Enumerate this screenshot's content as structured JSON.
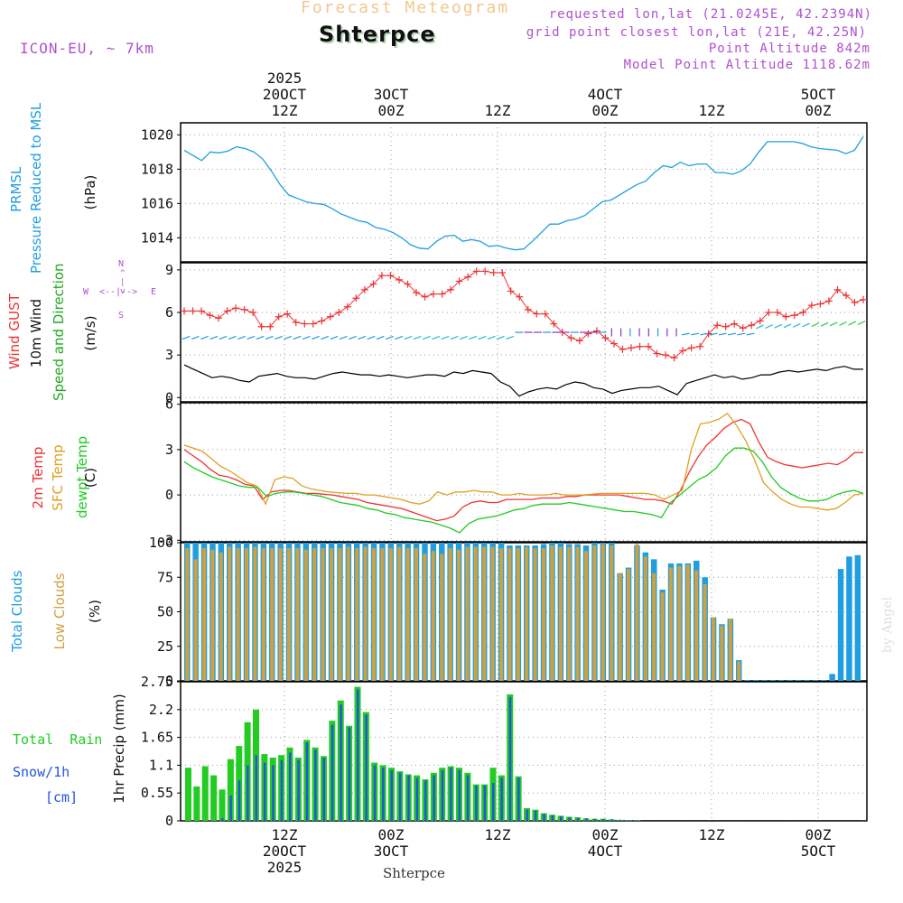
{
  "header": {
    "faint_title": "Forecast Meteogram",
    "location": "Shterpce",
    "model": "ICON-EU, ~ 7km",
    "requested": "requested lon,lat (21.0245E, 42.2394N)",
    "grid_point": "grid point closest lon,lat (21E, 42.25N)",
    "point_alt": "Point Altitude 842m",
    "model_alt": "Model Point Altitude 1118.62m"
  },
  "footer": {
    "location": "Shterpce",
    "signature": "by Angel"
  },
  "colors": {
    "pressure": "#1f9fe0",
    "gust": "#ee3333",
    "wind": "#000000",
    "arrows_blue": "#2299dd",
    "arrows_purple": "#8833cc",
    "arrows_green": "#22cc44",
    "temp2m": "#ee3333",
    "sfc": "#e0a020",
    "dew": "#22cc22",
    "total_cloud": "#1f9fe0",
    "low_cloud": "#d0a040",
    "rain": "#22cc22",
    "snow": "#2255dd",
    "purple_text": "#b050d0",
    "faint": "#f0c080"
  },
  "time_axis": {
    "top_labels": [
      {
        "l1": "2025",
        "l2": "20OCT",
        "l3": "12Z"
      },
      {
        "l1": "",
        "l2": "3OCT",
        "l3": "00Z"
      },
      {
        "l1": "",
        "l2": "",
        "l3": "12Z"
      },
      {
        "l1": "",
        "l2": "4OCT",
        "l3": "00Z"
      },
      {
        "l1": "",
        "l2": "",
        "l3": "12Z"
      },
      {
        "l1": "",
        "l2": "5OCT",
        "l3": "00Z"
      }
    ],
    "bottom_labels": [
      {
        "l1": "12Z",
        "l2": "20OCT",
        "l3": "2025"
      },
      {
        "l1": "00Z",
        "l2": "3OCT",
        "l3": ""
      },
      {
        "l1": "12Z",
        "l2": "",
        "l3": ""
      },
      {
        "l1": "00Z",
        "l2": "4OCT",
        "l3": ""
      },
      {
        "l1": "12Z",
        "l2": "",
        "l3": ""
      },
      {
        "l1": "00Z",
        "l2": "5OCT",
        "l3": ""
      }
    ]
  },
  "panel_labels": {
    "pressure": {
      "name": "PRMSL",
      "desc": "Pressure Reduced to MSL",
      "unit": "(hPa)"
    },
    "wind": {
      "gust": "Wind GUST",
      "wind10": "10m Wind",
      "dir": "Speed and Direction",
      "unit": "(m/s)",
      "compass_n": "N",
      "compass_s": "S",
      "compass_w": "W",
      "compass_e": "E",
      "compass_v": "^\n|\nv",
      "compass_h": "<--|-->"
    },
    "temp": {
      "t2m": "2m Temp",
      "sfc": "SFC Temp",
      "dew": "dewpt Temp",
      "unit": "(C)"
    },
    "cloud": {
      "total": "Total Clouds",
      "low": "Low Clouds",
      "unit": "(%)"
    },
    "precip": {
      "total_rain": "Total  Rain",
      "snow": "Snow/1h",
      "snow_unit": "[cm]",
      "axis": "1hr Precip (mm)"
    }
  },
  "chart_data": [
    {
      "type": "line",
      "panel": "pressure",
      "title": "PRMSL Pressure Reduced to MSL",
      "ylabel": "(hPa)",
      "ylim": [
        1012.6,
        1020.7
      ],
      "yticks": [
        1014,
        1016,
        1018,
        1020
      ],
      "grid": true,
      "series": [
        {
          "name": "PRMSL",
          "values": [
            1019.1,
            1018.8,
            1018.5,
            1019.0,
            1018.95,
            1019.05,
            1019.3,
            1019.2,
            1019.0,
            1018.6,
            1017.9,
            1017.1,
            1016.5,
            1016.3,
            1016.1,
            1016.0,
            1015.95,
            1015.7,
            1015.4,
            1015.2,
            1015.0,
            1014.9,
            1014.6,
            1014.5,
            1014.3,
            1014.0,
            1013.6,
            1013.4,
            1013.35,
            1013.8,
            1014.1,
            1014.15,
            1013.8,
            1013.9,
            1013.8,
            1013.5,
            1013.55,
            1013.4,
            1013.3,
            1013.35,
            1013.8,
            1014.3,
            1014.8,
            1014.8,
            1015.0,
            1015.1,
            1015.3,
            1015.7,
            1016.1,
            1016.2,
            1016.5,
            1016.8,
            1017.1,
            1017.3,
            1017.8,
            1018.2,
            1018.1,
            1018.4,
            1018.2,
            1018.3,
            1018.3,
            1017.8,
            1017.8,
            1017.7,
            1017.9,
            1018.3,
            1019.0,
            1019.6,
            1019.6,
            1019.6,
            1019.6,
            1019.5,
            1019.3,
            1019.2,
            1019.15,
            1019.1,
            1018.9,
            1019.1,
            1019.9
          ]
        }
      ]
    },
    {
      "type": "line",
      "panel": "wind",
      "title": "Wind GUST / 10m Wind Speed and Direction",
      "ylabel": "(m/s)",
      "ylim": [
        -0.3,
        9.5
      ],
      "yticks": [
        0,
        3,
        6,
        9
      ],
      "grid": true,
      "series": [
        {
          "name": "Wind GUST",
          "values": [
            6.1,
            6.1,
            6.1,
            5.8,
            5.6,
            6.1,
            6.3,
            6.2,
            6.0,
            5.0,
            5.0,
            5.7,
            5.9,
            5.3,
            5.2,
            5.2,
            5.4,
            5.7,
            6.0,
            6.4,
            7.0,
            7.6,
            8.0,
            8.6,
            8.6,
            8.3,
            8.0,
            7.4,
            7.1,
            7.3,
            7.3,
            7.6,
            8.2,
            8.5,
            8.9,
            8.9,
            8.8,
            8.8,
            7.5,
            7.1,
            6.2,
            5.9,
            5.9,
            5.2,
            4.6,
            4.2,
            4.0,
            4.5,
            4.7,
            4.2,
            3.8,
            3.4,
            3.5,
            3.6,
            3.6,
            3.1,
            3.0,
            2.8,
            3.3,
            3.5,
            3.6,
            4.5,
            5.1,
            5.0,
            5.2,
            4.9,
            5.1,
            5.4,
            6.0,
            6.0,
            5.7,
            5.8,
            6.0,
            6.5,
            6.6,
            6.8,
            7.6,
            7.2,
            6.7,
            6.9
          ]
        },
        {
          "name": "10m Wind",
          "values": [
            2.3,
            2.0,
            1.7,
            1.4,
            1.5,
            1.4,
            1.2,
            1.1,
            1.5,
            1.6,
            1.7,
            1.5,
            1.4,
            1.4,
            1.3,
            1.5,
            1.7,
            1.8,
            1.7,
            1.6,
            1.6,
            1.5,
            1.6,
            1.5,
            1.4,
            1.5,
            1.6,
            1.6,
            1.5,
            1.8,
            1.7,
            1.9,
            1.8,
            1.7,
            1.1,
            0.8,
            0.1,
            0.4,
            0.6,
            0.7,
            0.6,
            0.9,
            1.1,
            1.0,
            0.7,
            0.6,
            0.3,
            0.5,
            0.6,
            0.7,
            0.7,
            0.8,
            0.5,
            0.2,
            1.0,
            1.2,
            1.4,
            1.6,
            1.4,
            1.5,
            1.3,
            1.4,
            1.6,
            1.6,
            1.8,
            1.9,
            1.8,
            1.9,
            2.0,
            1.9,
            2.1,
            2.2,
            2.0,
            2.0
          ]
        }
      ]
    },
    {
      "type": "line",
      "panel": "temp",
      "title": "2m Temp / SFC Temp / dewpt Temp",
      "ylabel": "(C)",
      "ylim": [
        -3.1,
        6.1
      ],
      "yticks": [
        -3,
        0,
        3,
        6
      ],
      "grid": true,
      "series": [
        {
          "name": "2m Temp",
          "values": [
            3.0,
            2.6,
            2.2,
            1.7,
            1.3,
            1.2,
            1.0,
            0.7,
            0.6,
            -0.3,
            0.2,
            0.3,
            0.3,
            0.2,
            0.1,
            0.1,
            0.05,
            0.0,
            -0.1,
            -0.2,
            -0.3,
            -0.5,
            -0.6,
            -0.7,
            -0.8,
            -0.9,
            -1.1,
            -1.3,
            -1.5,
            -1.7,
            -1.6,
            -1.4,
            -0.8,
            -0.5,
            -0.4,
            -0.5,
            -0.5,
            -0.3,
            -0.3,
            -0.3,
            -0.3,
            -0.2,
            -0.2,
            -0.2,
            -0.1,
            -0.1,
            0.0,
            0.0,
            0.0,
            0.0,
            0.0,
            -0.1,
            -0.2,
            -0.3,
            -0.3,
            -0.4,
            -0.6,
            0.3,
            1.5,
            2.5,
            3.3,
            3.8,
            4.4,
            4.8,
            5.0,
            4.7,
            3.5,
            2.5,
            2.2,
            2.0,
            1.9,
            1.8,
            1.9,
            2.0,
            2.1,
            2.0,
            2.3,
            2.8,
            2.8
          ]
        },
        {
          "name": "SFC Temp",
          "values": [
            3.3,
            3.1,
            2.9,
            2.4,
            1.9,
            1.6,
            1.2,
            0.8,
            0.6,
            -0.6,
            1.0,
            1.2,
            1.1,
            0.6,
            0.4,
            0.3,
            0.2,
            0.15,
            0.1,
            0.1,
            0.0,
            0.0,
            -0.1,
            -0.2,
            -0.3,
            -0.5,
            -0.6,
            -0.4,
            0.2,
            0.0,
            0.2,
            0.2,
            0.3,
            0.2,
            0.2,
            0.0,
            0.0,
            0.1,
            0.0,
            0.0,
            0.0,
            0.1,
            0.0,
            0.0,
            0.0,
            0.05,
            0.1,
            0.1,
            0.1,
            0.1,
            0.1,
            0.1,
            0.0,
            -0.3,
            0.0,
            0.3,
            3.0,
            4.7,
            4.8,
            5.0,
            5.4,
            4.6,
            3.6,
            2.3,
            0.8,
            0.2,
            -0.3,
            -0.6,
            -0.8,
            -0.8,
            -0.9,
            -1.0,
            -0.9,
            -0.5,
            0.0,
            0.1
          ]
        },
        {
          "name": "dewpt Temp",
          "values": [
            2.2,
            1.8,
            1.5,
            1.2,
            1.0,
            0.8,
            0.6,
            0.5,
            0.5,
            -0.1,
            0.1,
            0.2,
            0.2,
            0.1,
            0.0,
            -0.1,
            -0.3,
            -0.5,
            -0.6,
            -0.7,
            -0.9,
            -1.0,
            -1.2,
            -1.3,
            -1.5,
            -1.6,
            -1.7,
            -1.8,
            -2.0,
            -2.2,
            -2.5,
            -1.9,
            -1.6,
            -1.5,
            -1.4,
            -1.2,
            -1.0,
            -0.9,
            -0.7,
            -0.6,
            -0.6,
            -0.6,
            -0.5,
            -0.6,
            -0.7,
            -0.8,
            -0.9,
            -1.0,
            -1.1,
            -1.1,
            -1.2,
            -1.3,
            -1.5,
            -0.5,
            0.0,
            0.5,
            1.0,
            1.3,
            1.8,
            2.6,
            3.1,
            3.1,
            2.9,
            2.2,
            1.2,
            0.5,
            0.1,
            -0.2,
            -0.4,
            -0.4,
            -0.3,
            0.0,
            0.2,
            0.3,
            0.1
          ]
        }
      ]
    },
    {
      "type": "bar",
      "panel": "cloud",
      "title": "Total Clouds / Low Clouds",
      "ylabel": "(%)",
      "ylim": [
        0,
        100
      ],
      "yticks": [
        0,
        25,
        50,
        75,
        100
      ],
      "grid": true,
      "series": [
        {
          "name": "Total Clouds",
          "values": [
            100,
            100,
            100,
            100,
            100,
            100,
            100,
            100,
            100,
            100,
            100,
            100,
            100,
            100,
            100,
            100,
            100,
            100,
            100,
            100,
            100,
            100,
            100,
            100,
            100,
            100,
            100,
            100,
            100,
            100,
            100,
            100,
            100,
            100,
            100,
            100,
            100,
            100,
            98,
            98,
            98,
            98,
            99,
            100,
            100,
            99,
            99,
            98,
            100,
            100,
            100,
            78,
            82,
            98,
            93,
            88,
            66,
            85,
            85,
            85,
            87,
            75,
            46,
            41,
            45,
            15,
            0,
            0,
            0,
            0,
            0,
            0,
            0,
            0,
            0,
            0,
            5,
            81,
            90,
            91
          ]
        },
        {
          "name": "Low Clouds",
          "values": [
            96,
            88,
            96,
            95,
            93,
            97,
            96,
            96,
            97,
            96,
            96,
            96,
            96,
            96,
            95,
            96,
            96,
            96,
            96,
            97,
            96,
            97,
            96,
            96,
            96,
            97,
            96,
            96,
            92,
            94,
            92,
            96,
            95,
            97,
            97,
            97,
            97,
            96,
            96,
            96,
            97,
            96,
            96,
            98,
            97,
            97,
            97,
            94,
            98,
            99,
            98,
            78,
            81,
            99,
            90,
            78,
            64,
            82,
            83,
            84,
            80,
            70,
            46,
            40,
            45,
            14,
            0,
            0,
            0,
            0,
            0,
            0,
            0,
            0,
            0,
            0,
            0,
            0,
            0,
            0
          ]
        }
      ]
    },
    {
      "type": "bar",
      "panel": "precip",
      "title": "Total Rain / Snow 1h",
      "ylabel": "1hr Precip (mm)",
      "ylim": [
        0,
        2.75
      ],
      "yticks": [
        0,
        0.55,
        1.1,
        1.65,
        2.2,
        2.75
      ],
      "grid": true,
      "series": [
        {
          "name": "Total Rain",
          "values": [
            1.05,
            0.68,
            1.08,
            0.9,
            0.62,
            1.22,
            1.48,
            1.95,
            2.2,
            1.32,
            1.25,
            1.3,
            1.45,
            1.25,
            1.6,
            1.45,
            1.28,
            1.98,
            2.38,
            1.88,
            2.65,
            2.15,
            1.15,
            1.1,
            1.05,
            0.98,
            0.92,
            0.9,
            0.82,
            0.95,
            1.05,
            1.08,
            1.05,
            0.95,
            0.72,
            0.72,
            1.05,
            0.9,
            2.5,
            0.88,
            0.25,
            0.22,
            0.15,
            0.12,
            0.1,
            0.08,
            0.07,
            0.05,
            0.04,
            0.04,
            0.03,
            0.02,
            0.01,
            0.01,
            0,
            0,
            0,
            0,
            0,
            0,
            0,
            0,
            0,
            0,
            0,
            0,
            0,
            0,
            0,
            0,
            0,
            0,
            0,
            0,
            0,
            0,
            0,
            0,
            0,
            0
          ]
        },
        {
          "name": "Snow/1h",
          "values": [
            0,
            0,
            0,
            0,
            0.05,
            0.5,
            0.8,
            1.1,
            1.3,
            1.15,
            1.1,
            1.2,
            1.35,
            1.2,
            1.55,
            1.4,
            1.25,
            1.9,
            2.3,
            1.85,
            2.6,
            2.1,
            1.1,
            1.05,
            1.0,
            0.95,
            0.9,
            0.85,
            0.8,
            0.9,
            1.0,
            1.05,
            1.0,
            0.9,
            0.7,
            0.7,
            0.75,
            0.85,
            2.45,
            0.85,
            0.22,
            0.2,
            0.14,
            0.11,
            0.09,
            0.07,
            0.06,
            0.05,
            0.04,
            0.04,
            0.03,
            0.02,
            0.01,
            0.01,
            0,
            0,
            0,
            0,
            0,
            0,
            0,
            0,
            0,
            0,
            0,
            0,
            0,
            0,
            0,
            0,
            0,
            0,
            0,
            0,
            0,
            0,
            0,
            0,
            0,
            0
          ]
        }
      ]
    }
  ]
}
